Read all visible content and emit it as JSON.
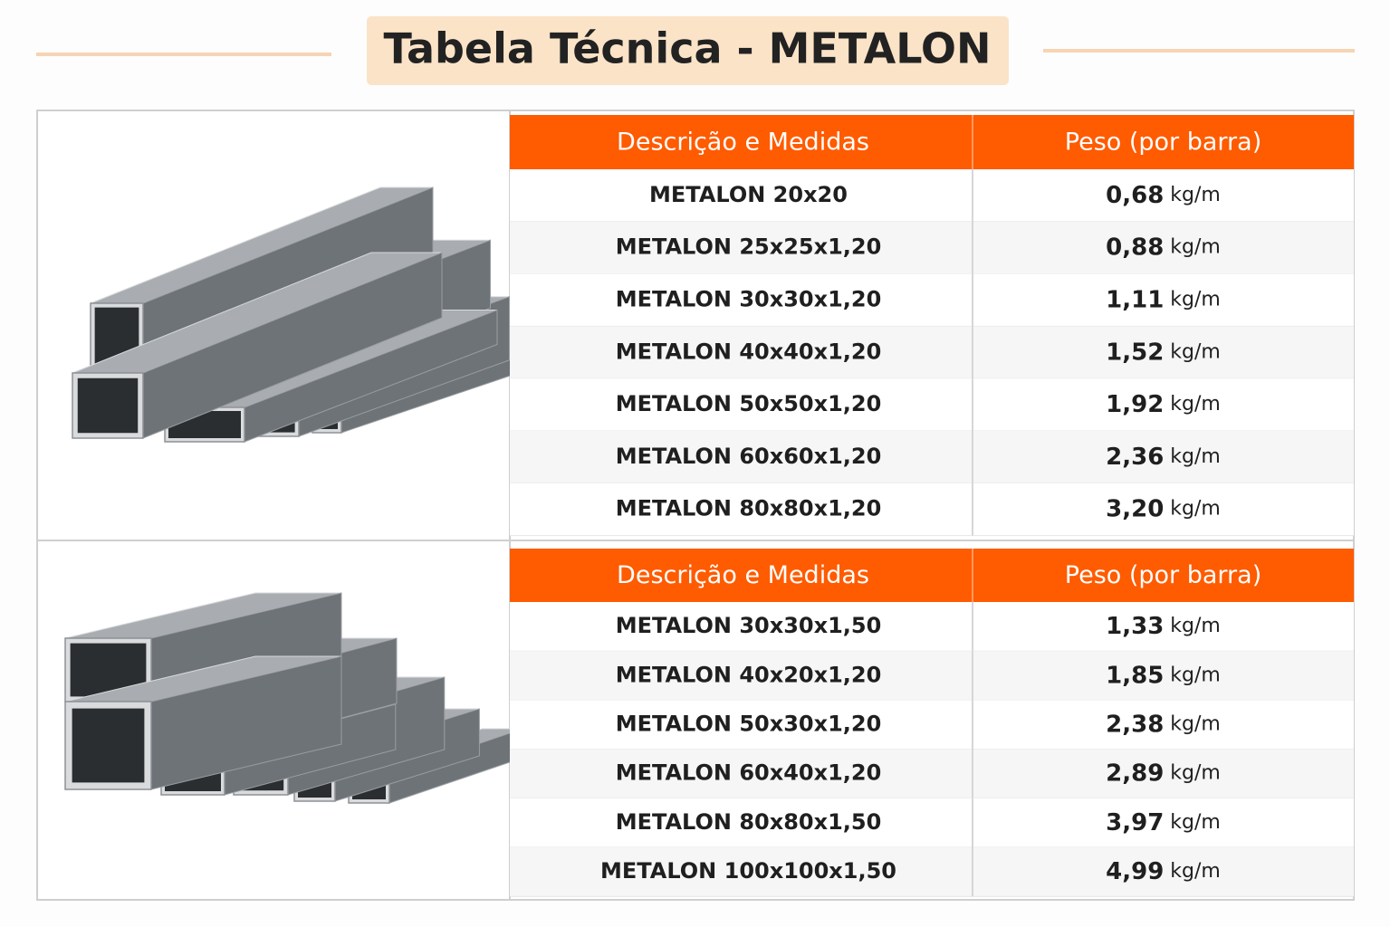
{
  "header": {
    "title": "Tabela Técnica - METALON"
  },
  "tables": [
    {
      "columns": [
        "Descrição e Medidas",
        "Peso (por barra)"
      ],
      "rows": [
        {
          "description": "METALON 20x20",
          "weight": "0,68",
          "unit": "kg/m"
        },
        {
          "description": "METALON 25x25x1,20",
          "weight": "0,88",
          "unit": "kg/m"
        },
        {
          "description": "METALON 30x30x1,20",
          "weight": "1,11",
          "unit": "kg/m"
        },
        {
          "description": "METALON 40x40x1,20",
          "weight": "1,52",
          "unit": "kg/m"
        },
        {
          "description": "METALON 50x50x1,20",
          "weight": "1,92",
          "unit": "kg/m"
        },
        {
          "description": "METALON 60x60x1,20",
          "weight": "2,36",
          "unit": "kg/m"
        },
        {
          "description": "METALON 80x80x1,20",
          "weight": "3,20",
          "unit": "kg/m"
        }
      ]
    },
    {
      "columns": [
        "Descrição e Medidas",
        "Peso (por barra)"
      ],
      "rows": [
        {
          "description": "METALON 30x30x1,50",
          "weight": "1,33",
          "unit": "kg/m"
        },
        {
          "description": "METALON 40x20x1,20",
          "weight": "1,85",
          "unit": "kg/m"
        },
        {
          "description": "METALON 50x30x1,20",
          "weight": "2,38",
          "unit": "kg/m"
        },
        {
          "description": "METALON 60x40x1,20",
          "weight": "2,89",
          "unit": "kg/m"
        },
        {
          "description": "METALON 80x80x1,50",
          "weight": "3,97",
          "unit": "kg/m"
        },
        {
          "description": "METALON 100x100x1,50",
          "weight": "4,99",
          "unit": "kg/m"
        }
      ]
    }
  ]
}
